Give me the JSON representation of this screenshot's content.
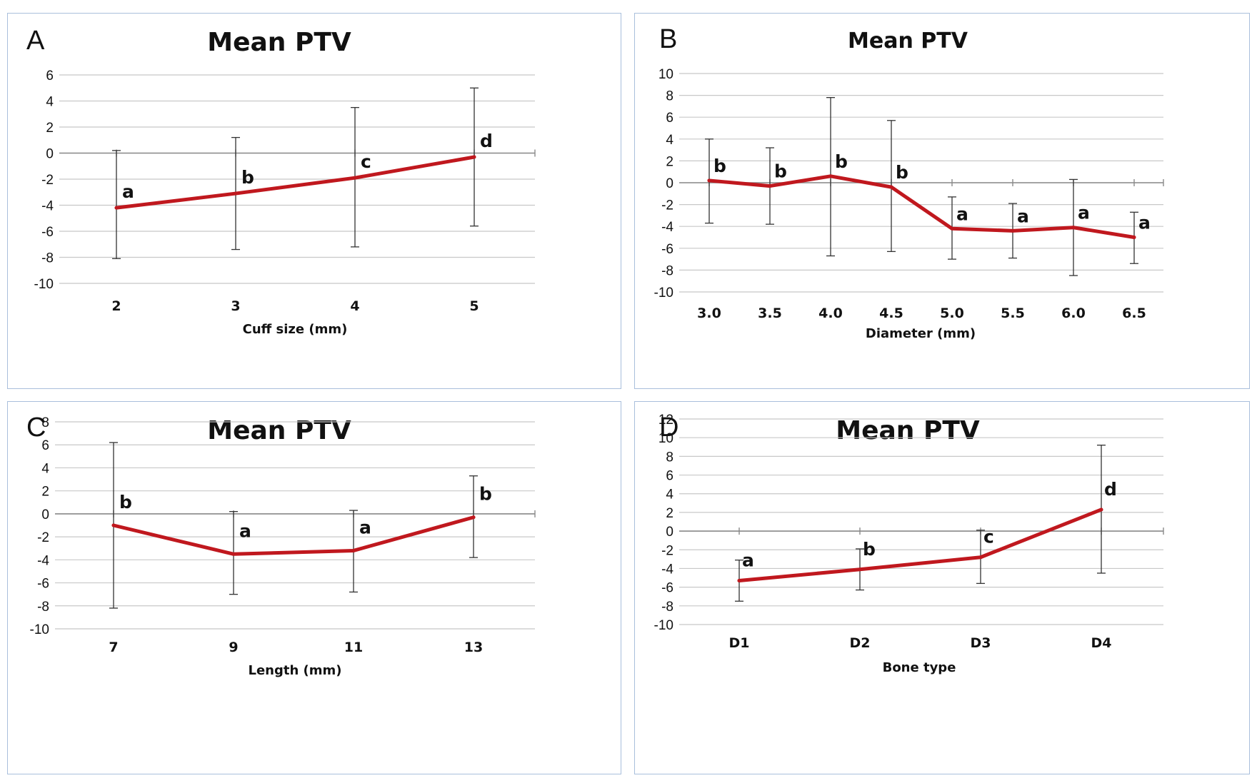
{
  "chart_data": [
    {
      "id": "A",
      "panel_label": "A",
      "type": "line",
      "title": "Mean PTV",
      "xlabel": "Cuff size (mm)",
      "ylabel": "",
      "categories": [
        "2",
        "3",
        "4",
        "5"
      ],
      "values": [
        -4.2,
        -3.1,
        -1.9,
        -0.3
      ],
      "error_low": [
        -8.1,
        -7.4,
        -7.2,
        -5.6
      ],
      "error_high": [
        0.2,
        1.2,
        3.5,
        5.0
      ],
      "significance": [
        "a",
        "b",
        "c",
        "d"
      ],
      "ylim": [
        -10,
        6
      ],
      "yticks": [
        6,
        4,
        2,
        0,
        -2,
        -4,
        -6,
        -8,
        -10
      ],
      "line_color": "#c0181e",
      "grid": true
    },
    {
      "id": "B",
      "panel_label": "B",
      "type": "line",
      "title": "Mean PTV",
      "xlabel": "Diameter (mm)",
      "ylabel": "",
      "categories": [
        "3.0",
        "3.5",
        "4.0",
        "4.5",
        "5.0",
        "5.5",
        "6.0",
        "6.5"
      ],
      "values": [
        0.2,
        -0.3,
        0.6,
        -0.4,
        -4.2,
        -4.4,
        -4.1,
        -5.0
      ],
      "error_low": [
        -3.7,
        -3.8,
        -6.7,
        -6.3,
        -7.0,
        -6.9,
        -8.5,
        -7.4
      ],
      "error_high": [
        4.0,
        3.2,
        7.8,
        5.7,
        -1.3,
        -1.9,
        0.3,
        -2.7
      ],
      "significance": [
        "b",
        "b",
        "b",
        "b",
        "a",
        "a",
        "a",
        "a"
      ],
      "ylim": [
        -10,
        10
      ],
      "yticks": [
        10,
        8,
        6,
        4,
        2,
        0,
        -2,
        -4,
        -6,
        -8,
        -10
      ],
      "line_color": "#c0181e",
      "grid": true
    },
    {
      "id": "C",
      "panel_label": "C",
      "type": "line",
      "title": "Mean PTV",
      "xlabel": "Length (mm)",
      "ylabel": "",
      "categories": [
        "7",
        "9",
        "11",
        "13"
      ],
      "values": [
        -1.0,
        -3.5,
        -3.2,
        -0.3
      ],
      "error_low": [
        -8.2,
        -7.0,
        -6.8,
        -3.8
      ],
      "error_high": [
        6.2,
        0.2,
        0.3,
        3.3
      ],
      "significance": [
        "b",
        "a",
        "a",
        "b"
      ],
      "ylim": [
        -10,
        8
      ],
      "yticks": [
        8,
        6,
        4,
        2,
        0,
        -2,
        -4,
        -6,
        -8,
        -10
      ],
      "line_color": "#c0181e",
      "grid": true
    },
    {
      "id": "D",
      "panel_label": "D",
      "type": "line",
      "title": "Mean PTV",
      "xlabel": "Bone type",
      "ylabel": "",
      "categories": [
        "D1",
        "D2",
        "D3",
        "D4"
      ],
      "values": [
        -5.3,
        -4.1,
        -2.8,
        2.3
      ],
      "error_low": [
        -7.5,
        -6.3,
        -5.6,
        -4.5
      ],
      "error_high": [
        -3.1,
        -1.9,
        0.1,
        9.2
      ],
      "significance": [
        "a",
        "b",
        "c",
        "d"
      ],
      "ylim": [
        -10,
        12
      ],
      "yticks": [
        12,
        10,
        8,
        6,
        4,
        2,
        0,
        -2,
        -4,
        -6,
        -8,
        -10
      ],
      "line_color": "#c0181e",
      "grid": true
    }
  ]
}
